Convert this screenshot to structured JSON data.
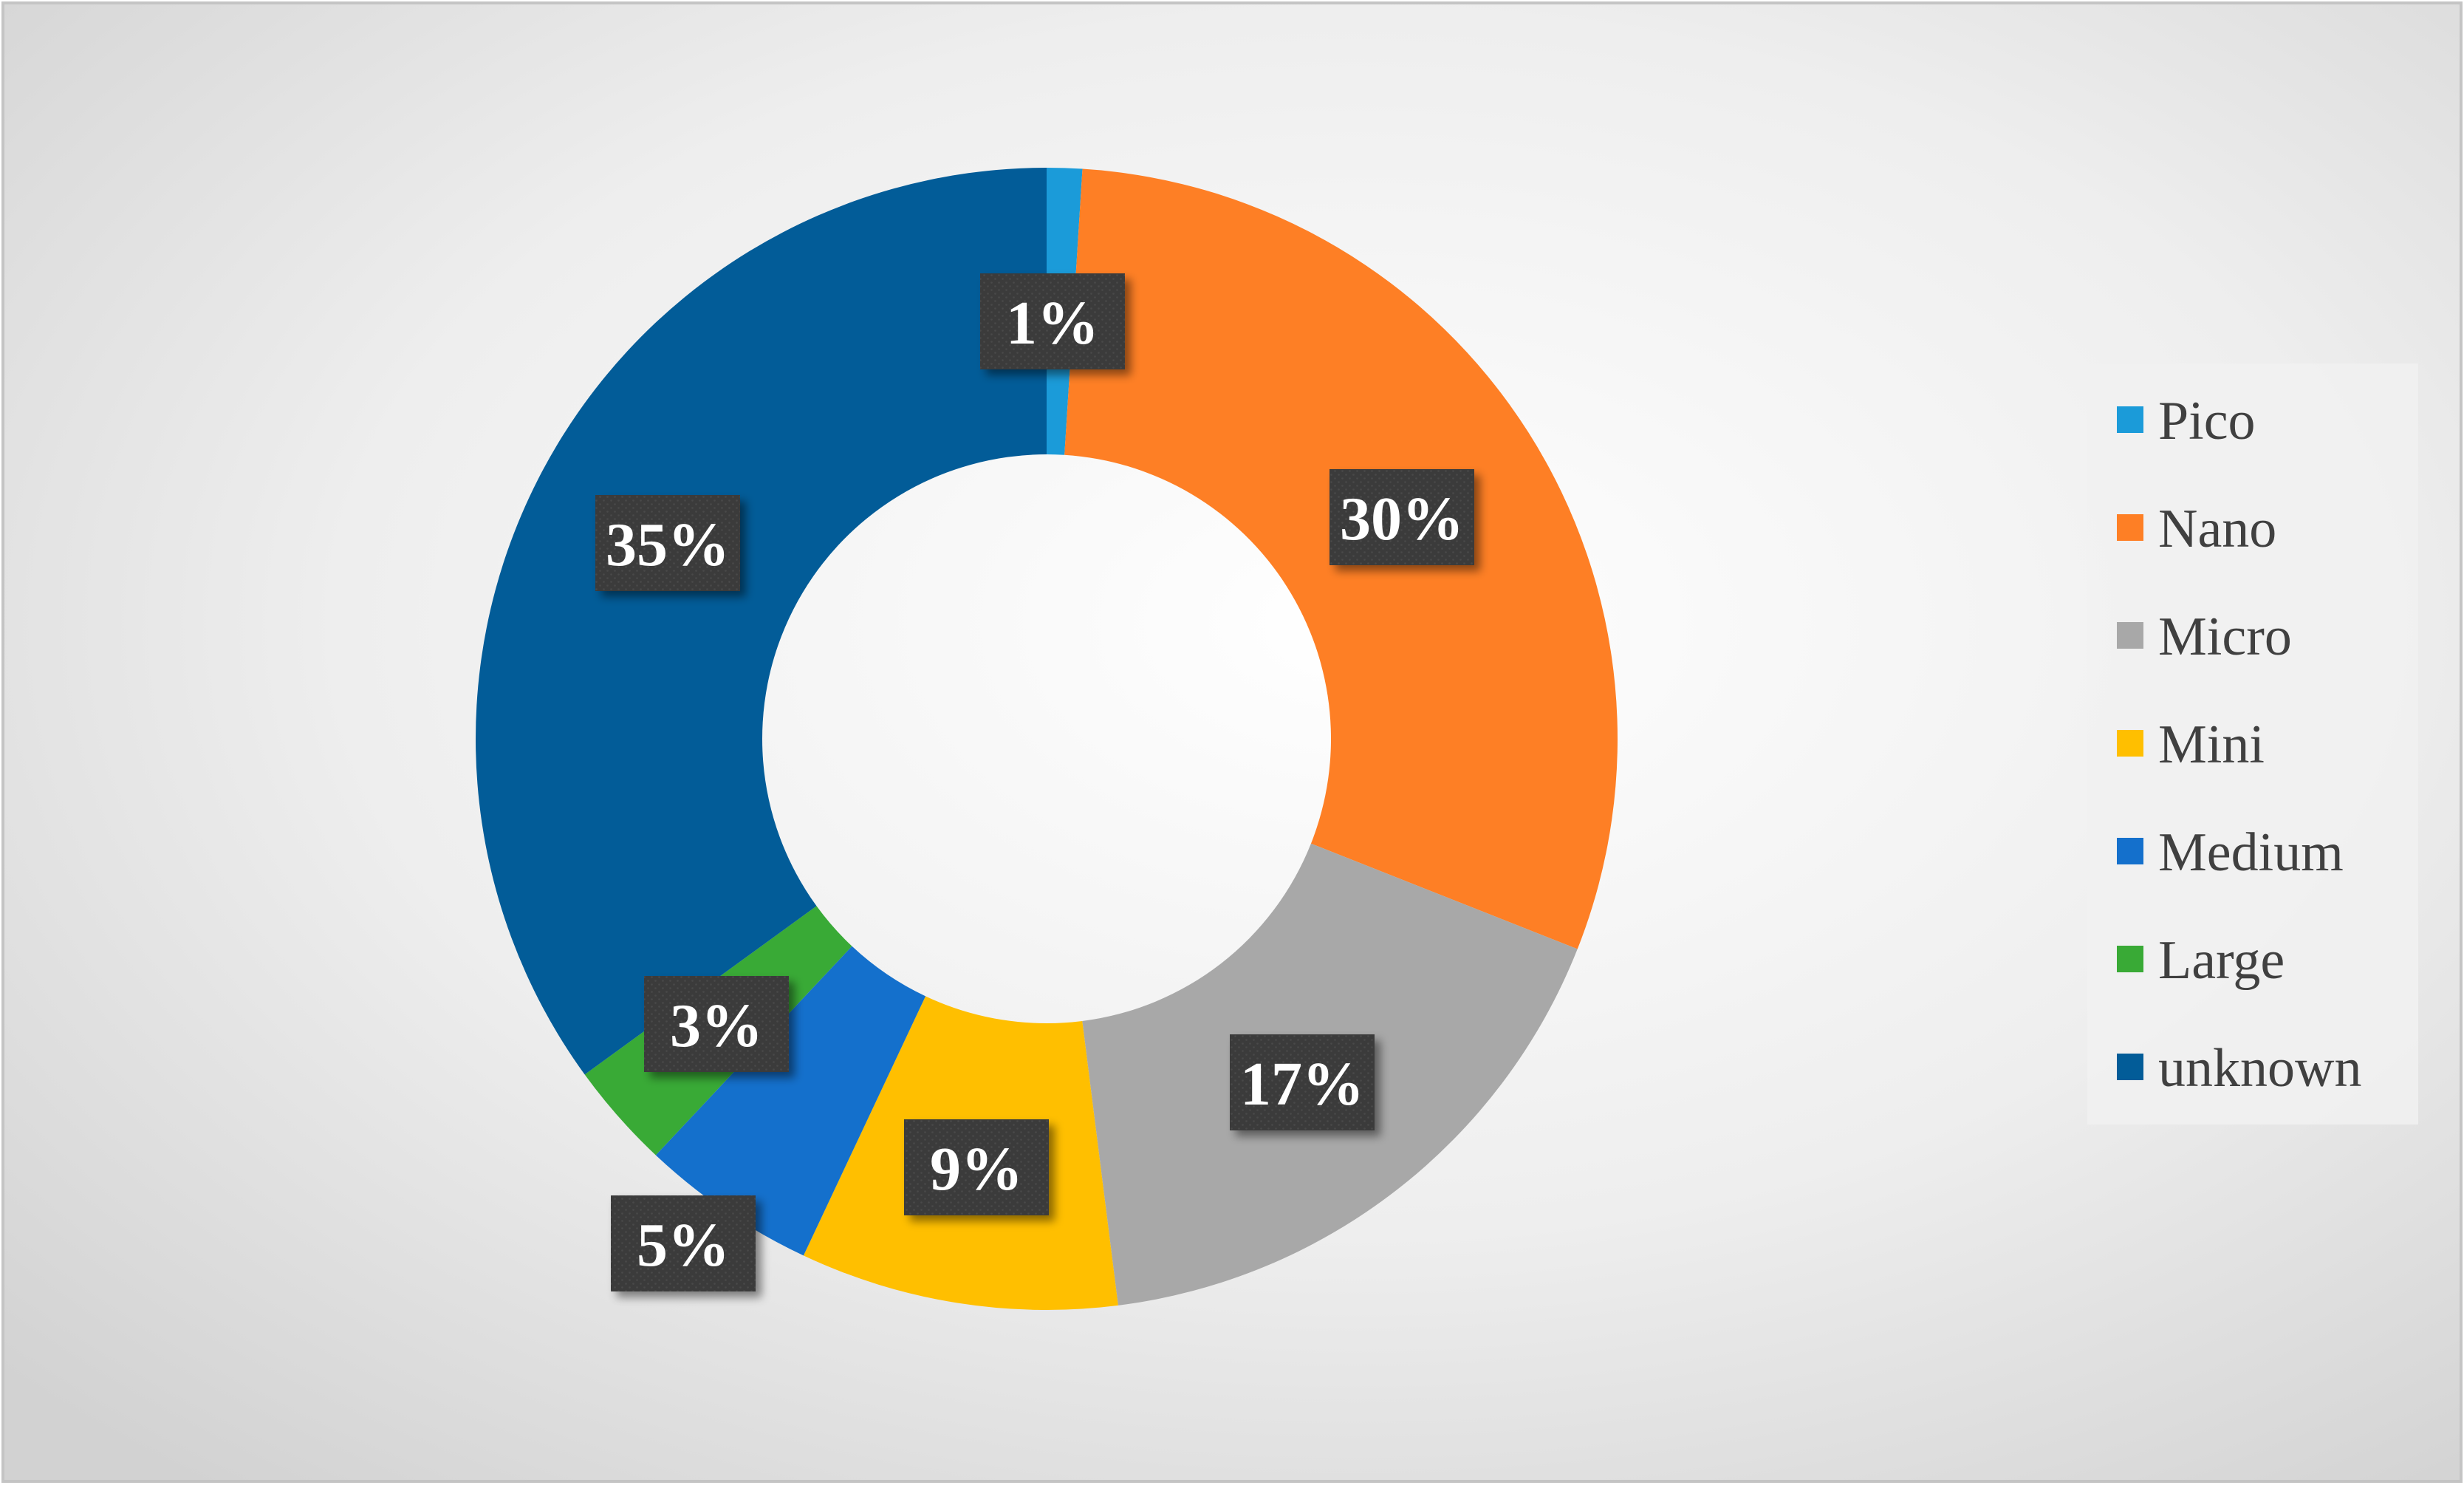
{
  "chart_data": {
    "type": "pie",
    "variant": "donut",
    "title": "",
    "categories": [
      "Pico",
      "Nano",
      "Micro",
      "Mini",
      "Medium",
      "Large",
      "unknown"
    ],
    "values": [
      1,
      30,
      17,
      9,
      5,
      3,
      35
    ],
    "labels": [
      "1%",
      "30%",
      "17%",
      "9%",
      "5%",
      "3%",
      "35%"
    ],
    "colors": [
      "#1B9BD9",
      "#FE7F25",
      "#A8A8A8",
      "#FFBF00",
      "#1470CC",
      "#39AA36",
      "#025C98"
    ],
    "legend": {
      "position": "right",
      "entries": [
        "Pico",
        "Nano",
        "Micro",
        "Mini",
        "Medium",
        "Large",
        "unknown"
      ]
    }
  }
}
